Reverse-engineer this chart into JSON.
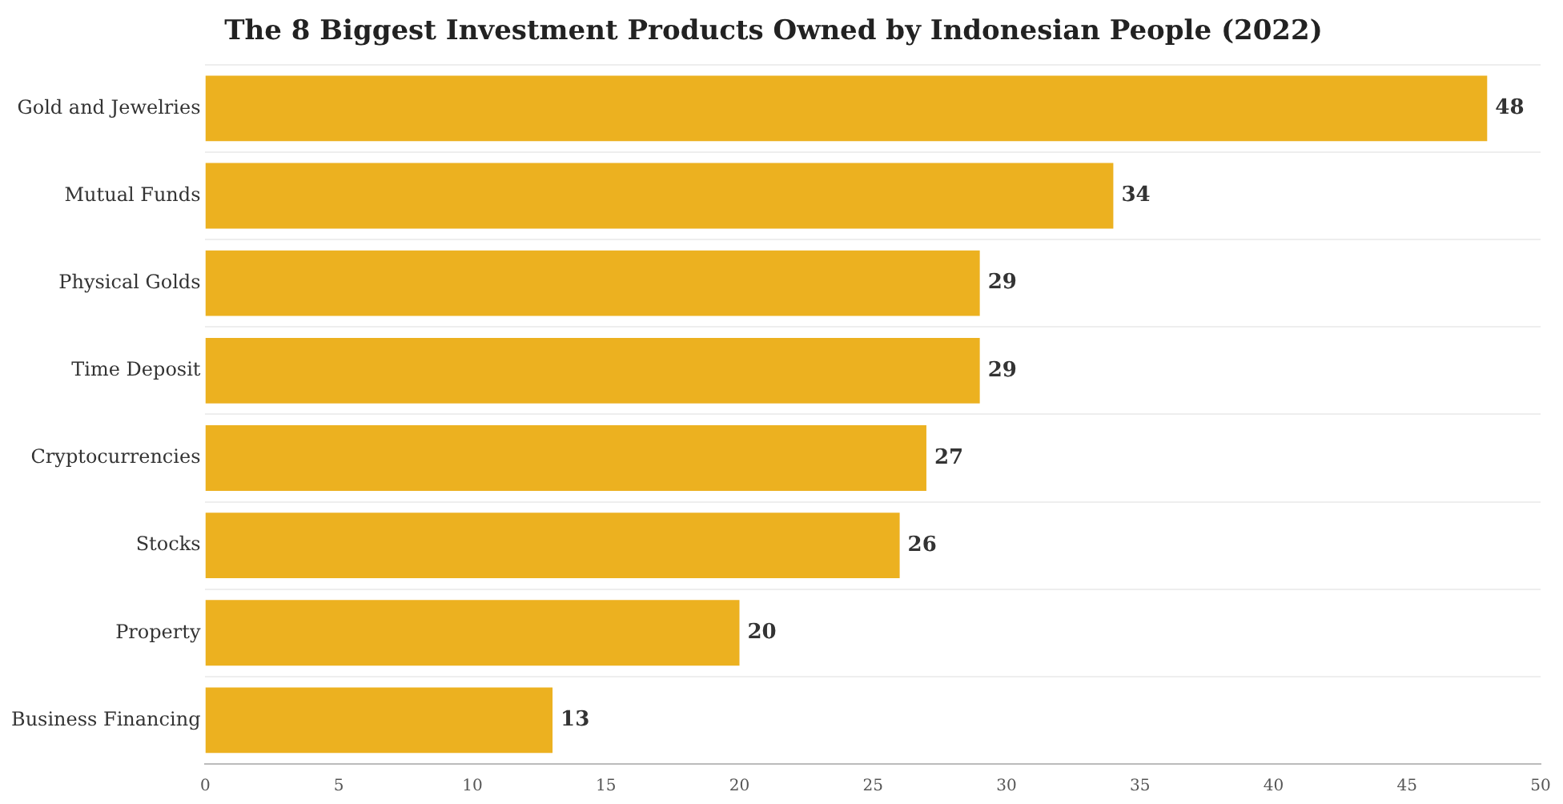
{
  "chart_data": {
    "type": "bar",
    "orientation": "horizontal",
    "title": "The 8 Biggest Investment Products Owned by Indonesian People (2022)",
    "categories": [
      "Gold and Jewelries",
      "Mutual Funds",
      "Physical Golds",
      "Time Deposit",
      "Cryptocurrencies",
      "Stocks",
      "Property",
      "Business Financing"
    ],
    "values": [
      48,
      34,
      29,
      29,
      27,
      26,
      20,
      13
    ],
    "color": "#ecb120",
    "xlim": [
      0,
      50
    ],
    "xticks": [
      0,
      5,
      10,
      15,
      20,
      25,
      30,
      35,
      40,
      45,
      50
    ],
    "grid": "y",
    "data_labels": true,
    "legend": false
  }
}
